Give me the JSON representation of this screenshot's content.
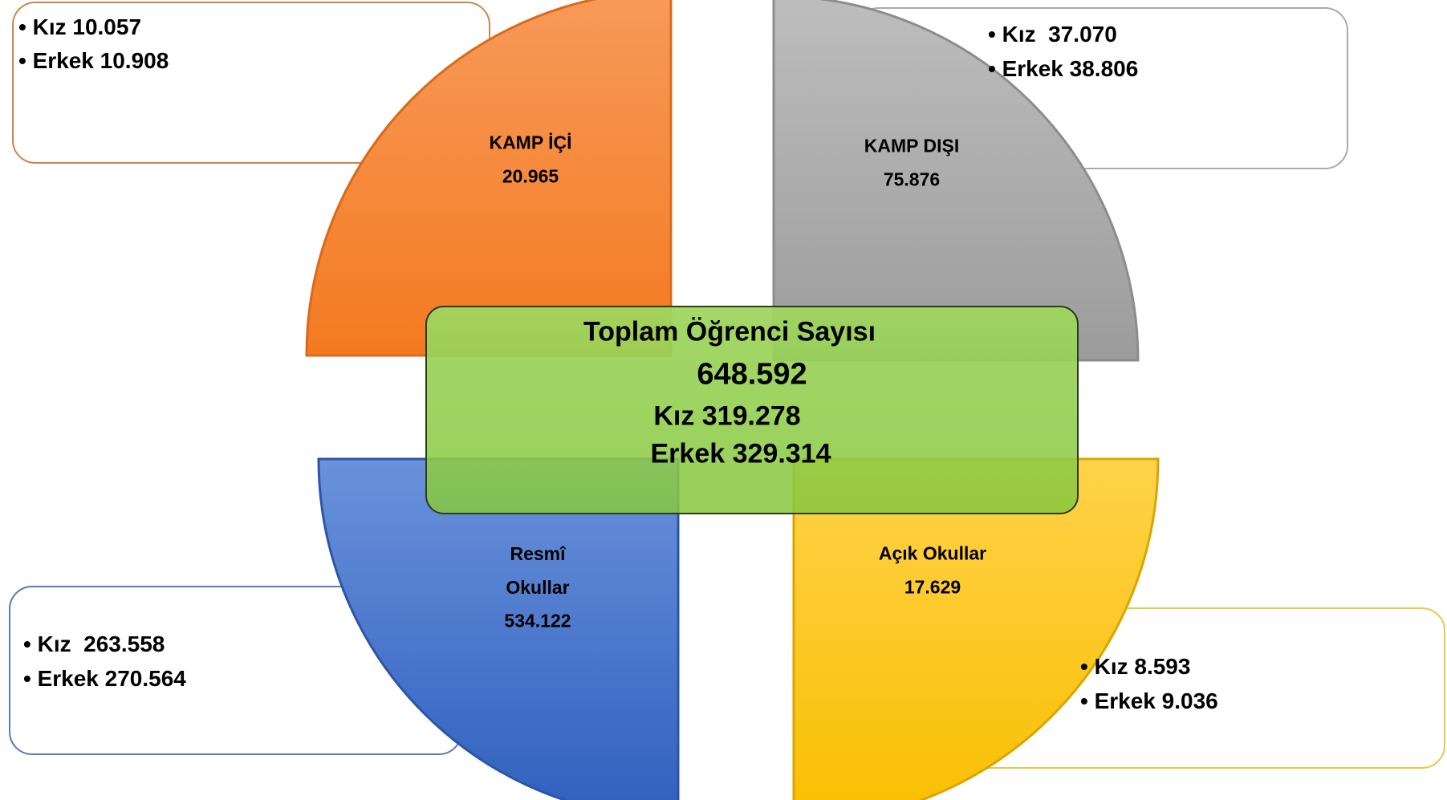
{
  "center": {
    "title": "Toplam Öğrenci Sayısı",
    "total": "648.592",
    "female": "Kız 319.278",
    "male": "Erkek 329.314"
  },
  "sections": [
    {
      "label": "KAMP İÇİ",
      "value": "20.965",
      "female": "Kız 10.057",
      "male": "Erkek 10.908"
    },
    {
      "label": "KAMP DIŞI",
      "value": "75.876",
      "female": "Kız  37.070",
      "male": "Erkek 38.806"
    },
    {
      "label": "Resmî Okullar",
      "value": "534.122",
      "female": "Kız  263.558",
      "male": "Erkek 270.564"
    },
    {
      "label": "Açık Okullar",
      "value": "17.629",
      "female": "Kız 8.593",
      "male": "Erkek 9.036"
    }
  ]
}
